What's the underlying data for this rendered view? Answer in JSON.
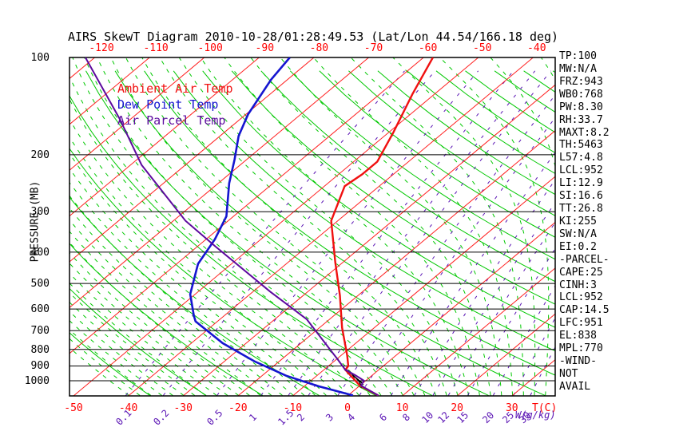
{
  "title": "AIRS SkewT Diagram 2010-10-28/01:28:49.53 (Lat/Lon 44.54/166.18 deg)",
  "axes": {
    "pressure_label": "PRESSURE (MB)",
    "temp_unit_label": "T(C)",
    "mixing_unit_label": "W(g/kg)",
    "pressure_ticks": [
      100,
      200,
      300,
      400,
      500,
      600,
      700,
      800,
      900,
      1000
    ],
    "top_temp_ticks": [
      -120,
      -110,
      -100,
      -90,
      -80,
      -70,
      -60,
      -50,
      -40
    ],
    "bottom_temp_ticks": [
      -50,
      -40,
      -30,
      -20,
      -10,
      0,
      10,
      20,
      30
    ],
    "mixing_ratio_ticks": [
      0.1,
      0.2,
      0.5,
      1,
      1.5,
      2,
      3,
      4,
      6,
      8,
      10,
      12,
      15,
      20,
      25,
      30
    ]
  },
  "stats_panel": {
    "lines": [
      "TP:100",
      "MW:N/A",
      "FRZ:943",
      "WB0:768",
      "PW:8.30",
      "RH:33.7",
      "MAXT:8.2",
      "TH:5463",
      "L57:4.8",
      "LCL:952",
      "LI:12.9",
      "SI:16.6",
      "TT:26.8",
      "KI:255",
      "SW:N/A",
      "EI:0.2",
      "-PARCEL-",
      "CAPE:25",
      "CINH:3",
      "LCL:952",
      "CAP:14.5",
      "LFC:951",
      "EL:838",
      "MPL:770",
      "-WIND-",
      "NOT",
      "AVAIL"
    ]
  },
  "chart_data": {
    "type": "skewt",
    "title": "AIRS SkewT Diagram 2010-10-28/01:28:49.53 (Lat/Lon 44.54/166.18 deg)",
    "pressure_range_mb": [
      100,
      1110
    ],
    "pressure_log_scale": true,
    "top_axis_temp_range_c": [
      -120,
      -40
    ],
    "bottom_axis_temp_range_c": [
      -50,
      30
    ],
    "isotherms_c": {
      "from": -120,
      "to": 30,
      "step": 10
    },
    "dry_adiabats_theta_k": {
      "from": 230,
      "to": 460,
      "step": 10
    },
    "moist_adiabats_tw_c": {
      "from": -40,
      "to": 40,
      "step": 2
    },
    "mixing_ratio_lines_gkg": [
      0.1,
      0.2,
      0.5,
      1,
      1.5,
      2,
      3,
      4,
      6,
      8,
      10,
      12,
      15,
      20,
      25,
      30
    ],
    "colors": {
      "isotherm": "#ff2020",
      "dry_adiabat": "#00c800",
      "moist_adiabat": "#00c800",
      "mixing_ratio": "#5a14b4",
      "pressure_line": "#000000",
      "frame": "#000000",
      "hatch": "#000000"
    },
    "series": [
      {
        "name": "Ambient Air Temp",
        "color": "#f01010",
        "points": [
          [
            100,
            -58.3
          ],
          [
            130,
            -54.0
          ],
          [
            170,
            -49.2
          ],
          [
            210,
            -45.7
          ],
          [
            230,
            -45.7
          ],
          [
            250,
            -46.3
          ],
          [
            320,
            -41.2
          ],
          [
            430,
            -31.4
          ],
          [
            545,
            -23.3
          ],
          [
            685,
            -15.9
          ],
          [
            835,
            -8.9
          ],
          [
            900,
            -6.4
          ],
          [
            925,
            -6.1
          ],
          [
            1035,
            0.0
          ],
          [
            1110,
            5.5
          ]
        ]
      },
      {
        "name": "Dew Point Temp",
        "color": "#1515d0",
        "points": [
          [
            100,
            -84.4
          ],
          [
            117,
            -83.0
          ],
          [
            150,
            -79.6
          ],
          [
            175,
            -76.6
          ],
          [
            207,
            -72.2
          ],
          [
            245,
            -68.0
          ],
          [
            310,
            -61.3
          ],
          [
            365,
            -58.4
          ],
          [
            435,
            -56.1
          ],
          [
            540,
            -50.9
          ],
          [
            630,
            -45.5
          ],
          [
            655,
            -44.0
          ],
          [
            765,
            -34.3
          ],
          [
            870,
            -24.6
          ],
          [
            965,
            -15.6
          ],
          [
            1040,
            -7.4
          ],
          [
            1110,
            0.9
          ]
        ]
      },
      {
        "name": "Air Parcel Temp",
        "color": "#5c0a9e",
        "points": [
          [
            100,
            -121.7
          ],
          [
            155,
            -102.0
          ],
          [
            215,
            -88.0
          ],
          [
            320,
            -67.8
          ],
          [
            385,
            -56.6
          ],
          [
            530,
            -36.9
          ],
          [
            645,
            -24.2
          ],
          [
            860,
            -9.7
          ],
          [
            925,
            -6.1
          ],
          [
            960,
            -3.2
          ],
          [
            1000,
            -0.3
          ],
          [
            1035,
            0.2
          ],
          [
            1110,
            5.5
          ]
        ]
      }
    ],
    "cape_hatch_pressure_range_mb": [
      930,
      1032
    ]
  }
}
